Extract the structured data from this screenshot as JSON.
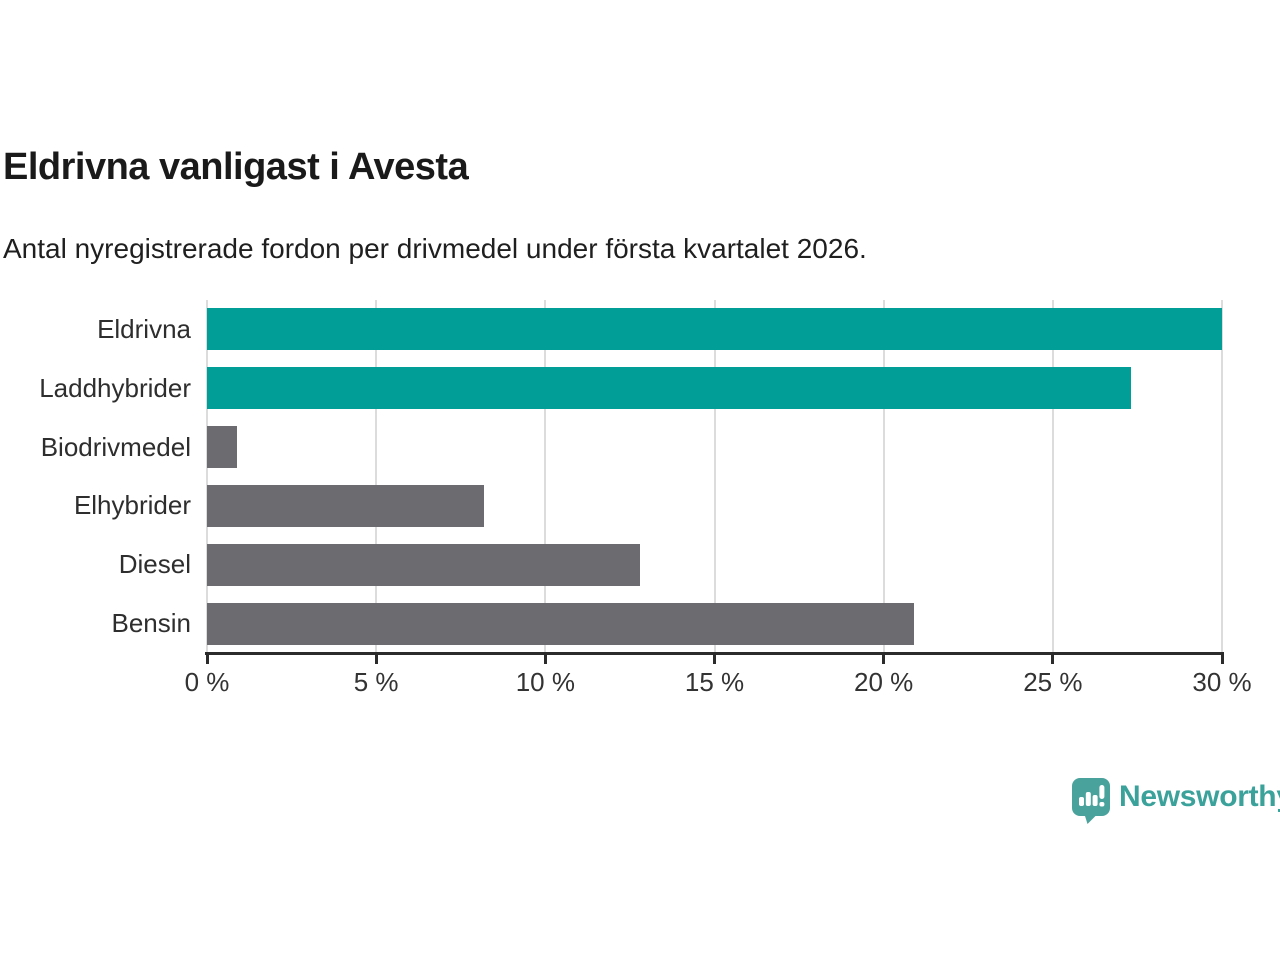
{
  "header": {
    "title": "Eldrivna vanligast i Avesta",
    "subtitle": "Antal nyregistrerade fordon per drivmedel under första kvartalet 2026."
  },
  "chart_data": {
    "type": "bar",
    "orientation": "horizontal",
    "title": "Eldrivna vanligast i Avesta",
    "subtitle": "Antal nyregistrerade fordon per drivmedel under första kvartalet 2026.",
    "categories": [
      "Eldrivna",
      "Laddhybrider",
      "Biodrivmedel",
      "Elhybrider",
      "Diesel",
      "Bensin"
    ],
    "values": [
      30.0,
      27.3,
      0.9,
      8.2,
      12.8,
      20.9
    ],
    "unit": "%",
    "xlabel": "",
    "ylabel": "",
    "xlim": [
      0,
      30
    ],
    "x_ticks": [
      0,
      5,
      10,
      15,
      20,
      25,
      30
    ],
    "x_tick_labels": [
      "0 %",
      "5 %",
      "10 %",
      "15 %",
      "20 %",
      "25 %",
      "30 %"
    ],
    "grid": true,
    "legend": "none",
    "bar_colors": [
      "#009e97",
      "#009e97",
      "#6c6b70",
      "#6c6b70",
      "#6c6b70",
      "#6c6b70"
    ],
    "highlight_color": "#009e97",
    "base_color": "#6c6b70",
    "gridline_color": "#dcdcdc",
    "axis_color": "#2b2b2b"
  },
  "footer": {
    "brand": "Newsworthy",
    "brand_color": "#3ba29b",
    "logo_color": "#4aa29c"
  }
}
